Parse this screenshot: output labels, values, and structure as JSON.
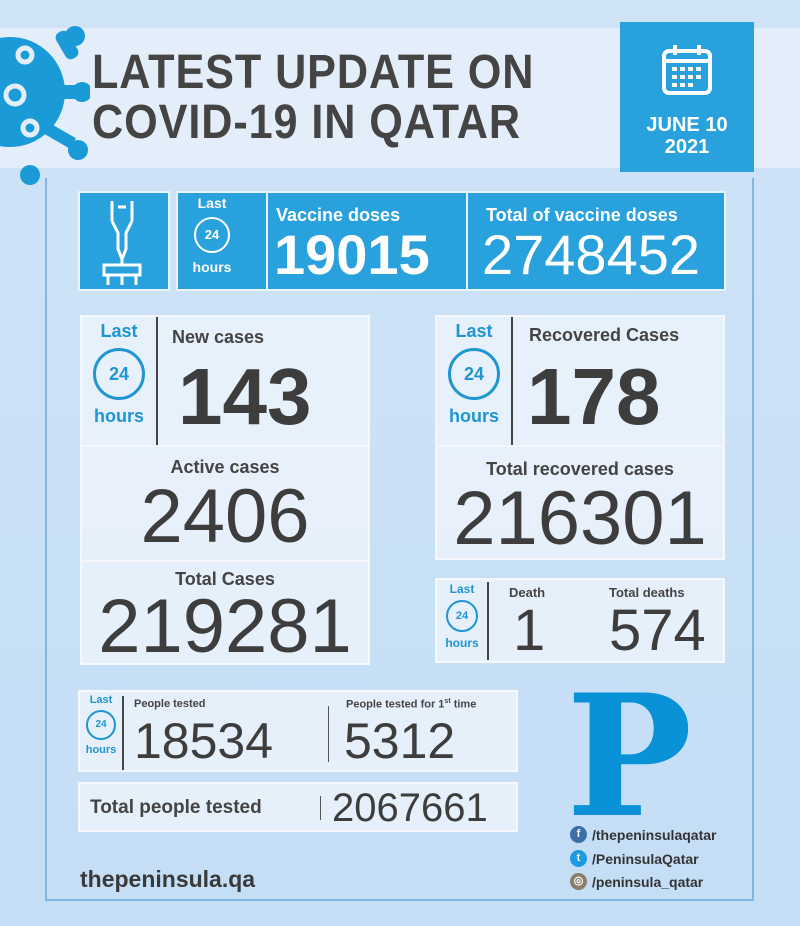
{
  "header": {
    "title_line1": "LATEST UPDATE ON",
    "title_line2": "COVID-19 IN QATAR",
    "date_line1": "JUNE 10",
    "date_line2": "2021"
  },
  "last24": {
    "top": "Last",
    "middle": "24",
    "bottom": "hours"
  },
  "vaccine": {
    "doses_label": "Vaccine doses",
    "doses_value": "19015",
    "total_label": "Total of vaccine doses",
    "total_value": "2748452"
  },
  "cases": {
    "new_label": "New cases",
    "new_value": "143",
    "active_label": "Active cases",
    "active_value": "2406",
    "total_label": "Total Cases",
    "total_value": "219281"
  },
  "recovered": {
    "new_label": "Recovered Cases",
    "new_value": "178",
    "total_label": "Total recovered cases",
    "total_value": "216301"
  },
  "deaths": {
    "new_label": "Death",
    "new_value": "1",
    "total_label": "Total deaths",
    "total_value": "574"
  },
  "tests": {
    "tested_label": "People tested",
    "tested_value": "18534",
    "first_label": "People tested for 1",
    "first_sup": "st",
    "first_suffix": " time",
    "first_value": "5312",
    "total_label": "Total people tested",
    "total_value": "2067661"
  },
  "footer": {
    "website": "thepeninsula.qa",
    "logo_letter": "P",
    "facebook": "/thepeninsulaqatar",
    "twitter": "/PeninsulaQatar",
    "instagram": "/peninsula_qatar"
  },
  "colors": {
    "accent": "#29a1dc",
    "logo": "#0a92d8",
    "text": "#3d3d3d"
  }
}
